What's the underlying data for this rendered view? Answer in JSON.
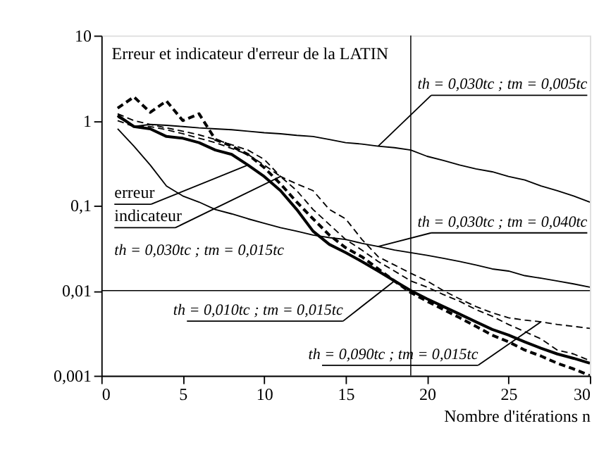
{
  "chart_data": {
    "type": "line",
    "title": "Erreur et indicateur d'erreur de la LATIN",
    "xlabel": "Nombre d'itérations n",
    "xlim": [
      0,
      30
    ],
    "xticks": [
      0,
      5,
      10,
      15,
      20,
      25,
      30
    ],
    "ylim": [
      0.001,
      10
    ],
    "yticks": [
      {
        "value": 0.001,
        "label": "0,001"
      },
      {
        "value": 0.01,
        "label": "0,01"
      },
      {
        "value": 0.1,
        "label": "0,1"
      },
      1,
      10
    ],
    "log": true,
    "grid": false,
    "x": [
      1,
      2,
      3,
      4,
      5,
      6,
      7,
      8,
      9,
      10,
      11,
      12,
      13,
      14,
      15,
      16,
      17,
      18,
      19,
      20,
      21,
      22,
      23,
      24,
      25,
      26,
      27,
      28,
      29,
      30
    ],
    "series": [
      {
        "color": "#000000",
        "line_style": "solid",
        "values": [
          1.1,
          0.85,
          0.9,
          0.88,
          0.85,
          0.82,
          0.8,
          0.78,
          0.75,
          0.72,
          0.7,
          0.67,
          0.65,
          0.6,
          0.55,
          0.53,
          0.5,
          0.48,
          0.45,
          0.38,
          0.34,
          0.3,
          0.27,
          0.25,
          0.22,
          0.2,
          0.17,
          0.15,
          0.13,
          0.11
        ]
      },
      {
        "color": "#000000",
        "line_style": "solid",
        "values": [
          0.8,
          0.5,
          0.3,
          0.17,
          0.13,
          0.11,
          0.09,
          0.08,
          0.07,
          0.062,
          0.055,
          0.05,
          0.045,
          0.042,
          0.04,
          0.036,
          0.033,
          0.03,
          0.028,
          0.026,
          0.024,
          0.022,
          0.02,
          0.018,
          0.017,
          0.015,
          0.014,
          0.013,
          0.012,
          0.011
        ]
      },
      {
        "color": "#000000",
        "line_style": "solid",
        "values": [
          1.15,
          0.85,
          0.8,
          0.65,
          0.62,
          0.55,
          0.45,
          0.4,
          0.3,
          0.22,
          0.15,
          0.09,
          0.05,
          0.035,
          0.028,
          0.022,
          0.017,
          0.013,
          0.01,
          0.008,
          0.0065,
          0.0053,
          0.0043,
          0.0035,
          0.003,
          0.0025,
          0.0021,
          0.0018,
          0.0016,
          0.0014
        ]
      },
      {
        "color": "#000000",
        "line_style": "dashed",
        "values": [
          1.0,
          0.85,
          0.85,
          0.78,
          0.7,
          0.62,
          0.55,
          0.47,
          0.4,
          0.3,
          0.22,
          0.15,
          0.09,
          0.06,
          0.04,
          0.03,
          0.022,
          0.017,
          0.013,
          0.011,
          0.009,
          0.0075,
          0.006,
          0.005,
          0.004,
          0.0033,
          0.0027,
          0.002,
          0.0018,
          0.0015
        ]
      },
      {
        "color": "#000000",
        "line_style": "dashed",
        "values": [
          1.4,
          1.9,
          1.25,
          1.7,
          1.0,
          1.2,
          0.6,
          0.5,
          0.4,
          0.28,
          0.18,
          0.11,
          0.07,
          0.045,
          0.032,
          0.025,
          0.018,
          0.013,
          0.0095,
          0.0075,
          0.006,
          0.0048,
          0.0038,
          0.003,
          0.0025,
          0.002,
          0.0017,
          0.0014,
          0.0012,
          0.001
        ]
      },
      {
        "color": "#000000",
        "line_style": "dashed",
        "values": [
          1.2,
          1.0,
          0.9,
          0.82,
          0.75,
          0.68,
          0.6,
          0.52,
          0.45,
          0.35,
          0.22,
          0.18,
          0.15,
          0.09,
          0.07,
          0.04,
          0.025,
          0.02,
          0.016,
          0.013,
          0.01,
          0.008,
          0.0065,
          0.0055,
          0.0048,
          0.0045,
          0.0043,
          0.004,
          0.0038,
          0.0036
        ]
      }
    ],
    "ref_lines": [
      {
        "axis": "y",
        "value": 0.01
      },
      {
        "axis": "x",
        "value": 19
      }
    ],
    "annotations": [
      {
        "text": "th = 0,030tc ; tm = 0,005tc",
        "x": 17,
        "y": 0.5
      },
      {
        "text": "erreur",
        "x": 9,
        "y": 0.3
      },
      {
        "text": "indicateur",
        "x": 11,
        "y": 0.22
      },
      "th = 0,030tc ; tm = 0,015tc",
      {
        "text": "th = 0,030tc ; tm = 0,040tc",
        "x": 17,
        "y": 0.033
      },
      {
        "text": "th = 0,010tc ; tm = 0,015tc",
        "x": 18,
        "y": 0.013
      },
      {
        "text": "th = 0,090tc ; tm = 0,015tc",
        "x": 27,
        "y": 0.0043
      }
    ]
  }
}
